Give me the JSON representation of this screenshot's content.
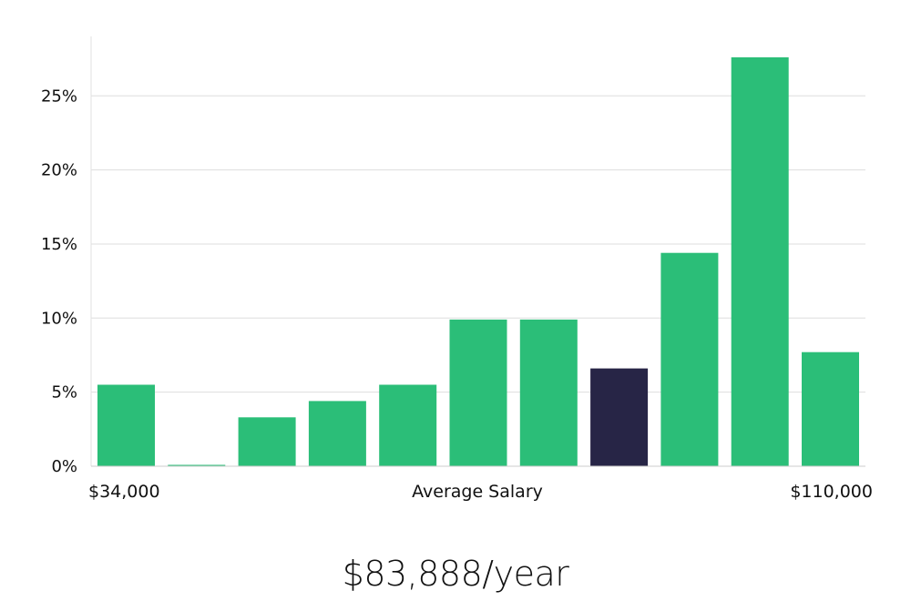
{
  "chart_data": {
    "type": "bar",
    "xlabel": "Average Salary",
    "x_range_labels": [
      "$34,000",
      "$110,000"
    ],
    "y_ticks": [
      "0%",
      "5%",
      "10%",
      "15%",
      "20%",
      "25%"
    ],
    "ylim": [
      0,
      28
    ],
    "grid": true,
    "values": [
      5.5,
      0.05,
      3.3,
      4.4,
      5.5,
      9.9,
      9.9,
      6.6,
      14.4,
      27.6,
      7.7
    ],
    "highlight_index": 7,
    "colors": {
      "bar": "#2BBE78",
      "highlight": "#272546",
      "grid": "#dddddd",
      "axis": "#cccccc"
    },
    "annotation": "$83,888/year"
  }
}
